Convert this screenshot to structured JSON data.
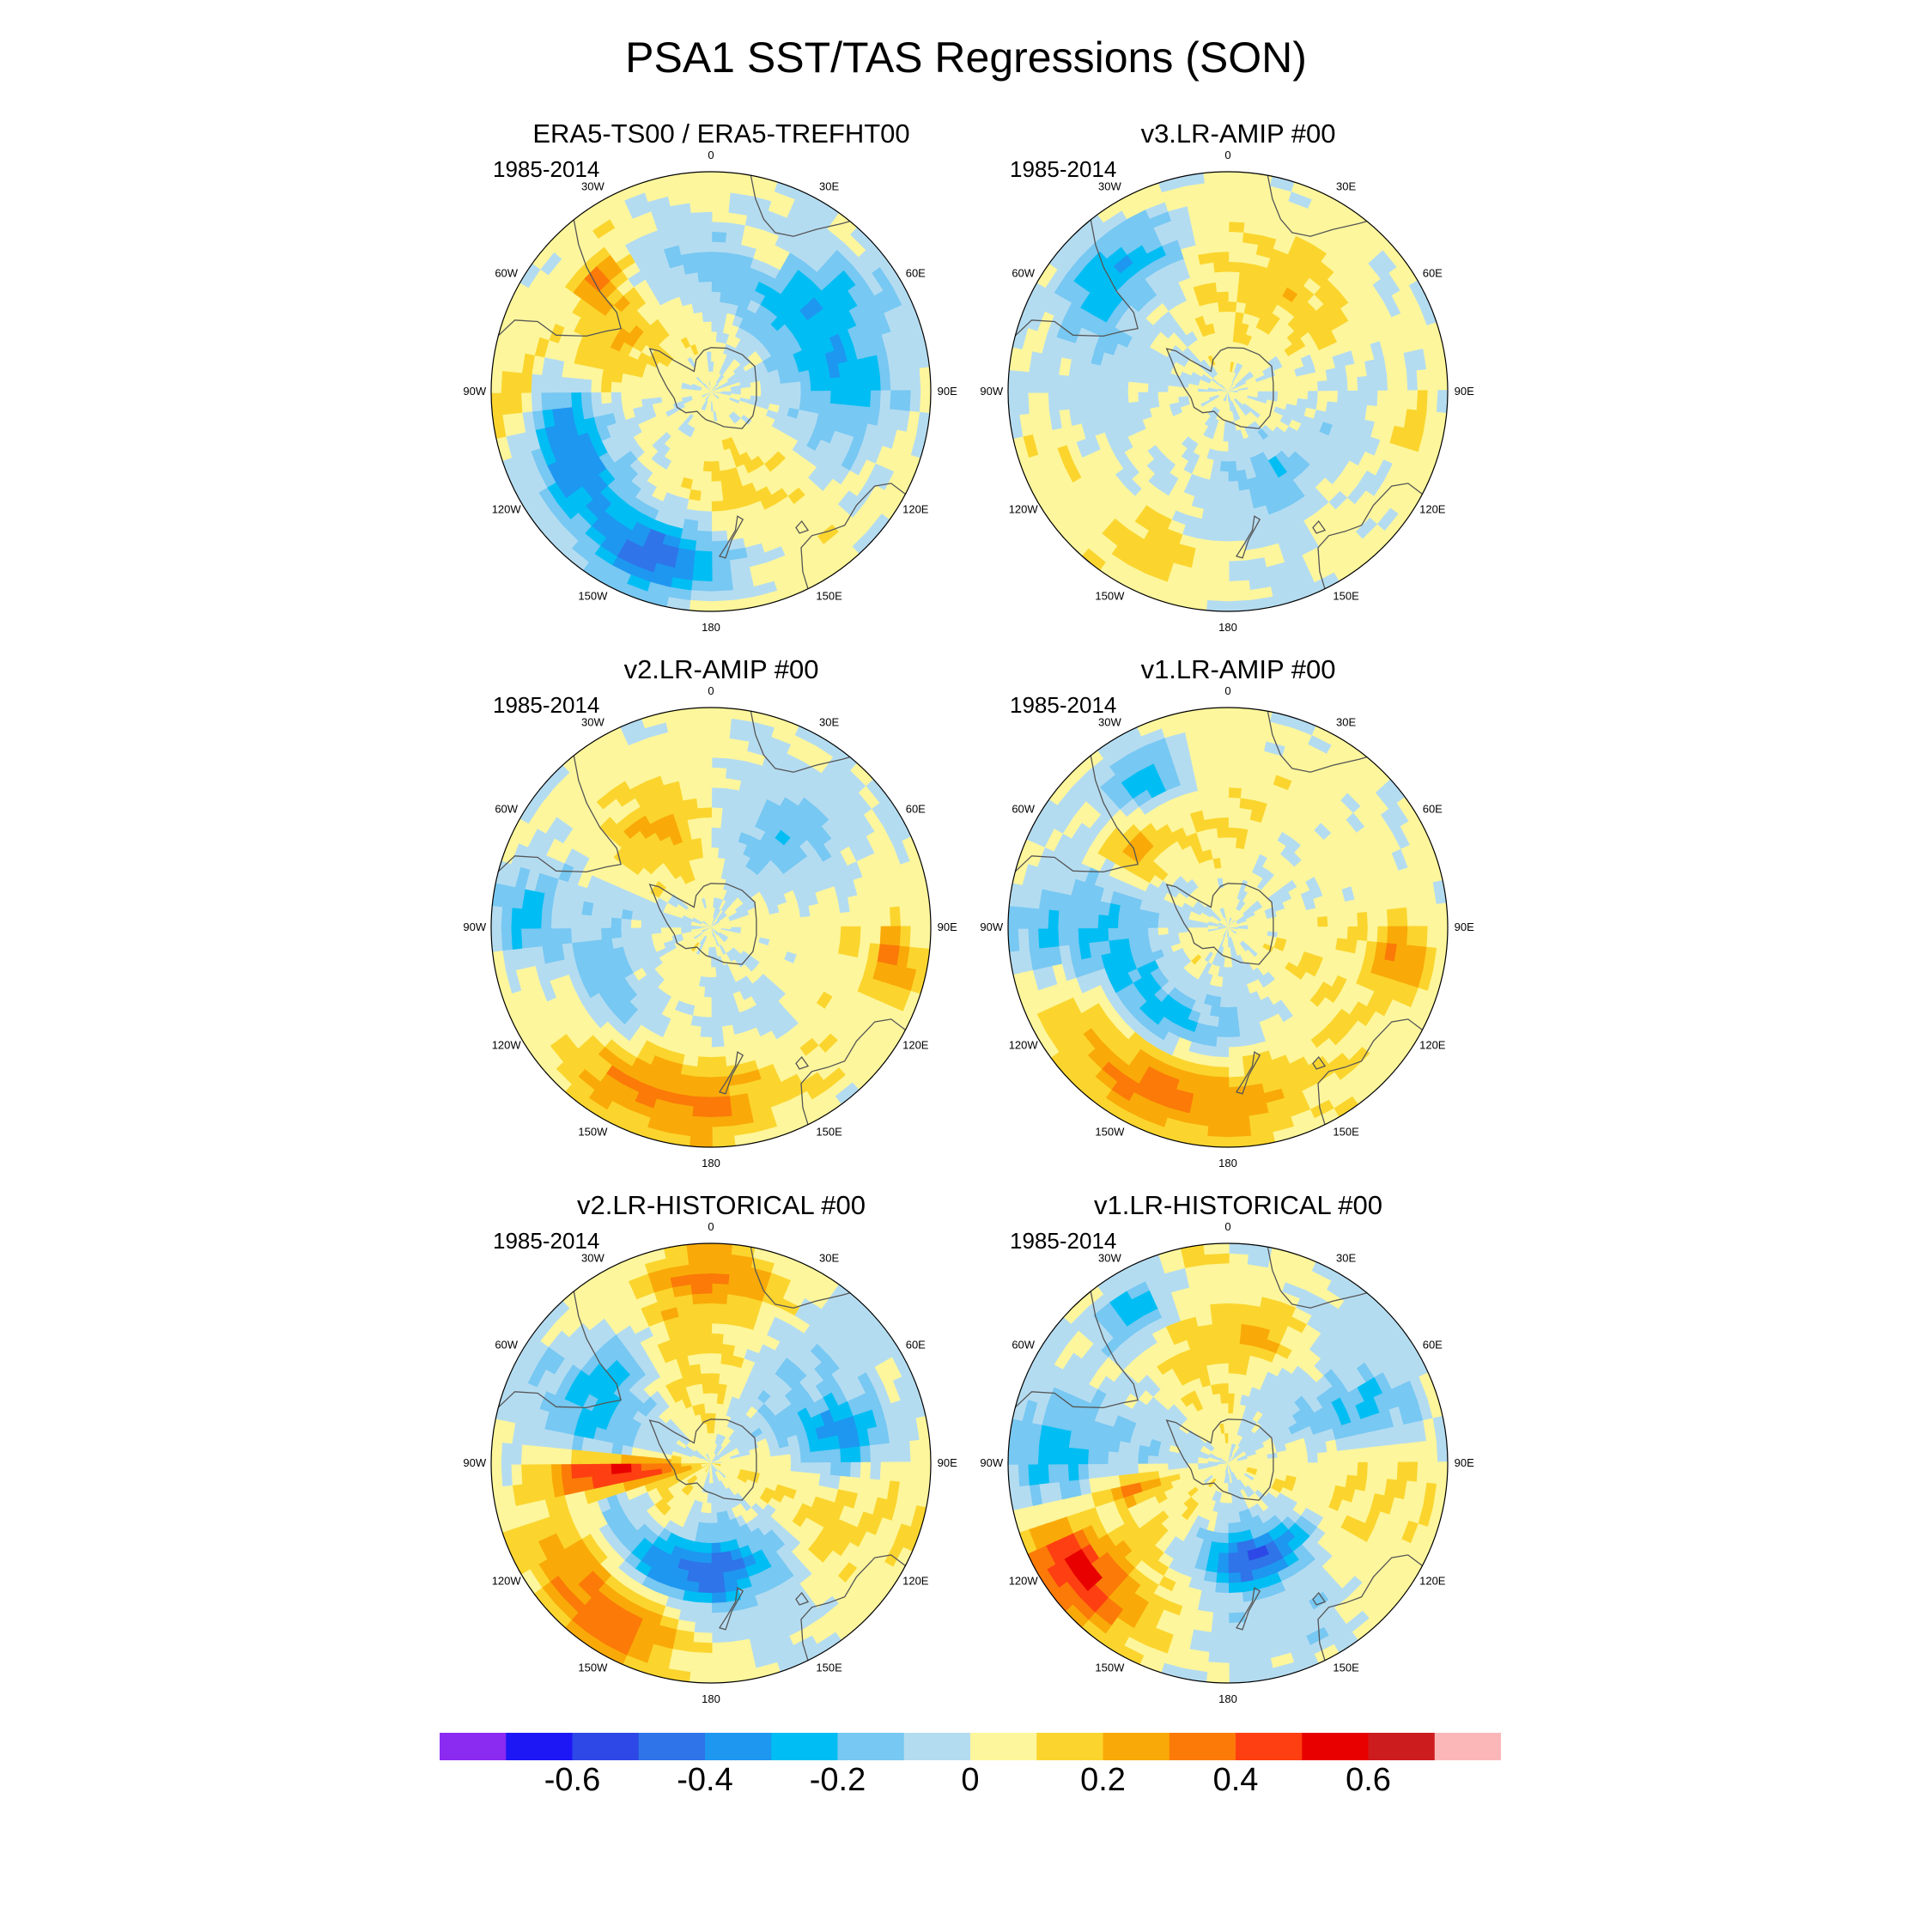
{
  "title": "PSA1 SST/TAS Regressions (SON)",
  "panels": [
    {
      "title": "ERA5-TS00 / ERA5-TREFHT00",
      "years": "1985-2014",
      "pattern": "obs"
    },
    {
      "title": "v3.LR-AMIP  #00",
      "years": "1985-2014",
      "pattern": "v3amip"
    },
    {
      "title": "v2.LR-AMIP  #00",
      "years": "1985-2014",
      "pattern": "v2amip"
    },
    {
      "title": "v1.LR-AMIP  #00",
      "years": "1985-2014",
      "pattern": "v1amip"
    },
    {
      "title": "v2.LR-HISTORICAL  #00",
      "years": "1985-2014",
      "pattern": "v2hist"
    },
    {
      "title": "v1.LR-HISTORICAL  #00",
      "years": "1985-2014",
      "pattern": "v1hist"
    }
  ],
  "longitude_labels": [
    "0",
    "30E",
    "60E",
    "90E",
    "120E",
    "150E",
    "180",
    "150W",
    "120W",
    "90W",
    "60W",
    "30W"
  ],
  "colorbar": {
    "colors": [
      "#8b2af0",
      "#1d16f5",
      "#2d48e6",
      "#2f74e8",
      "#1e97f1",
      "#00bef3",
      "#77c8f2",
      "#b4dcf1",
      "#fdf69c",
      "#fbd52e",
      "#f9aa08",
      "#fb7a08",
      "#fe3f12",
      "#e80000",
      "#cc1c1e",
      "#fbb7b8"
    ],
    "min": -0.8,
    "max": 0.8,
    "step": 0.1,
    "tick_labels": [
      "-0.6",
      "-0.4",
      "-0.2",
      "0",
      "0.2",
      "0.4",
      "0.6"
    ],
    "tick_values": [
      -0.6,
      -0.4,
      -0.2,
      0,
      0.2,
      0.4,
      0.6
    ]
  }
}
